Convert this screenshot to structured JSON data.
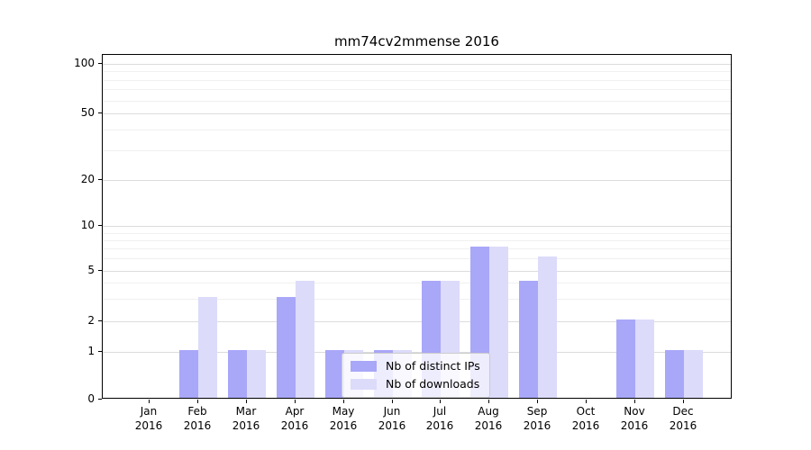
{
  "chart_data": {
    "type": "bar",
    "title": "mm74cv2mmense 2016",
    "categories": [
      "Jan",
      "Feb",
      "Mar",
      "Apr",
      "May",
      "Jun",
      "Jul",
      "Aug",
      "Sep",
      "Oct",
      "Nov",
      "Dec"
    ],
    "category_year": "2016",
    "series": [
      {
        "name": "Nb of distinct IPs",
        "color": "#a9a7f8",
        "values": [
          0,
          1,
          1,
          3,
          1,
          1,
          4,
          7,
          4,
          0,
          2,
          1
        ]
      },
      {
        "name": "Nb of downloads",
        "color": "#dcdbfa",
        "values": [
          0,
          3,
          1,
          4,
          1,
          1,
          4,
          7,
          6,
          0,
          2,
          1
        ]
      }
    ],
    "xlabel": "",
    "ylabel": "",
    "y_axis": {
      "scale": "symlog",
      "ticks": [
        0,
        1,
        2,
        5,
        10,
        20,
        50,
        100
      ],
      "minor_ticks": [
        3,
        4,
        6,
        7,
        8,
        9,
        30,
        40,
        60,
        70,
        80,
        90
      ],
      "ylim": [
        0,
        100
      ]
    },
    "grid": true,
    "legend_position": "lower center",
    "colors": {
      "background": "#ffffff",
      "spine": "#000000",
      "grid_major": "#dcdcdc",
      "grid_minor": "#f0f0f0"
    }
  }
}
